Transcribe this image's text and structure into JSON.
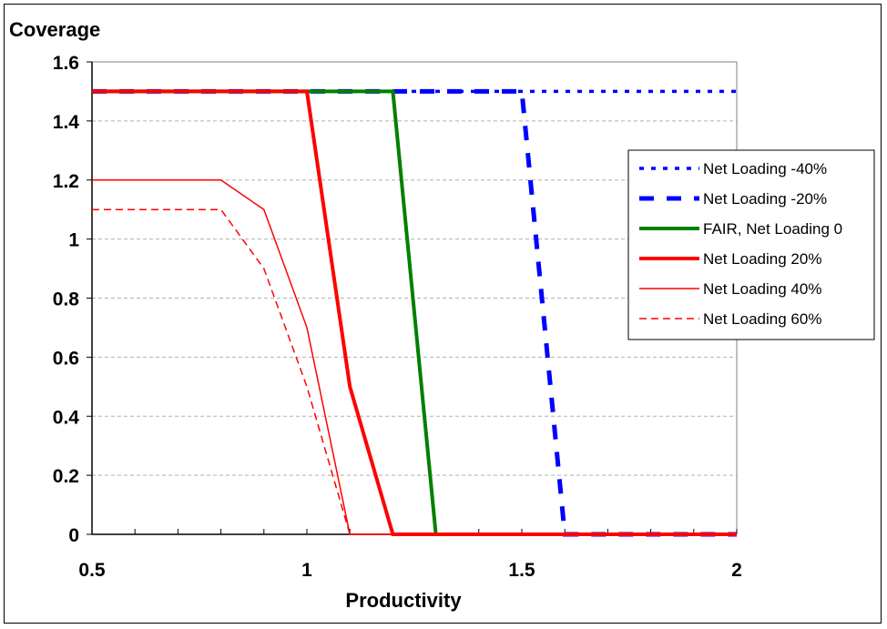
{
  "chart_data": {
    "type": "line",
    "title": "",
    "xlabel": "Productivity",
    "ylabel": "Coverage",
    "xlim": [
      0.5,
      2
    ],
    "ylim": [
      0,
      1.6
    ],
    "x_ticks": [
      "0.5",
      "1",
      "1.5",
      "2"
    ],
    "y_ticks": [
      "0",
      "0.2",
      "0.4",
      "0.6",
      "0.8",
      "1",
      "1.2",
      "1.4",
      "1.6"
    ],
    "grid": "horizontal dashed",
    "legend_position": "right",
    "series": [
      {
        "name": "Net Loading -40%",
        "color": "#0000ff",
        "style": "dotted",
        "x": [
          0.5,
          0.6,
          0.7,
          0.8,
          0.9,
          1.0,
          1.1,
          1.2,
          1.3,
          1.4,
          1.5,
          1.6,
          1.7,
          1.8,
          1.9,
          2.0
        ],
        "y": [
          1.5,
          1.5,
          1.5,
          1.5,
          1.5,
          1.5,
          1.5,
          1.5,
          1.5,
          1.5,
          1.5,
          1.5,
          1.5,
          1.5,
          1.5,
          1.5
        ]
      },
      {
        "name": "Net Loading -20%",
        "color": "#0000ff",
        "style": "dashed",
        "x": [
          0.5,
          0.6,
          0.7,
          0.8,
          0.9,
          1.0,
          1.1,
          1.2,
          1.3,
          1.4,
          1.5,
          1.6,
          1.7,
          1.8,
          1.9,
          2.0
        ],
        "y": [
          1.5,
          1.5,
          1.5,
          1.5,
          1.5,
          1.5,
          1.5,
          1.5,
          1.5,
          1.5,
          1.5,
          0,
          0,
          0,
          0,
          0
        ]
      },
      {
        "name": "FAIR, Net Loading 0",
        "color": "#008000",
        "style": "thick",
        "x": [
          0.5,
          0.6,
          0.7,
          0.8,
          0.9,
          1.0,
          1.1,
          1.2,
          1.3,
          1.4,
          1.5,
          1.6,
          1.7,
          1.8,
          1.9,
          2.0
        ],
        "y": [
          1.5,
          1.5,
          1.5,
          1.5,
          1.5,
          1.5,
          1.5,
          1.5,
          0,
          0,
          0,
          0,
          0,
          0,
          0,
          0
        ]
      },
      {
        "name": "Net Loading 20%",
        "color": "#ff0000",
        "style": "thick",
        "x": [
          0.5,
          0.6,
          0.7,
          0.8,
          0.9,
          1.0,
          1.1,
          1.2,
          1.3,
          1.4,
          1.5,
          1.6,
          1.7,
          1.8,
          1.9,
          2.0
        ],
        "y": [
          1.5,
          1.5,
          1.5,
          1.5,
          1.5,
          1.5,
          0.5,
          0,
          0,
          0,
          0,
          0,
          0,
          0,
          0,
          0
        ]
      },
      {
        "name": "Net Loading 40%",
        "color": "#ff0000",
        "style": "thin",
        "x": [
          0.5,
          0.6,
          0.7,
          0.8,
          0.9,
          1.0,
          1.1,
          1.2,
          1.3,
          1.4,
          1.5,
          1.6,
          1.7,
          1.8,
          1.9,
          2.0
        ],
        "y": [
          1.2,
          1.2,
          1.2,
          1.2,
          1.1,
          0.7,
          0,
          0,
          0,
          0,
          0,
          0,
          0,
          0,
          0,
          0
        ]
      },
      {
        "name": "Net Loading 60%",
        "color": "#ff0000",
        "style": "thin-dashed",
        "x": [
          0.5,
          0.6,
          0.7,
          0.8,
          0.9,
          1.0,
          1.1,
          1.2,
          1.3,
          1.4,
          1.5,
          1.6,
          1.7,
          1.8,
          1.9,
          2.0
        ],
        "y": [
          1.1,
          1.1,
          1.1,
          1.1,
          0.9,
          0.5,
          0,
          0,
          0,
          0,
          0,
          0,
          0,
          0,
          0,
          0
        ]
      }
    ]
  }
}
